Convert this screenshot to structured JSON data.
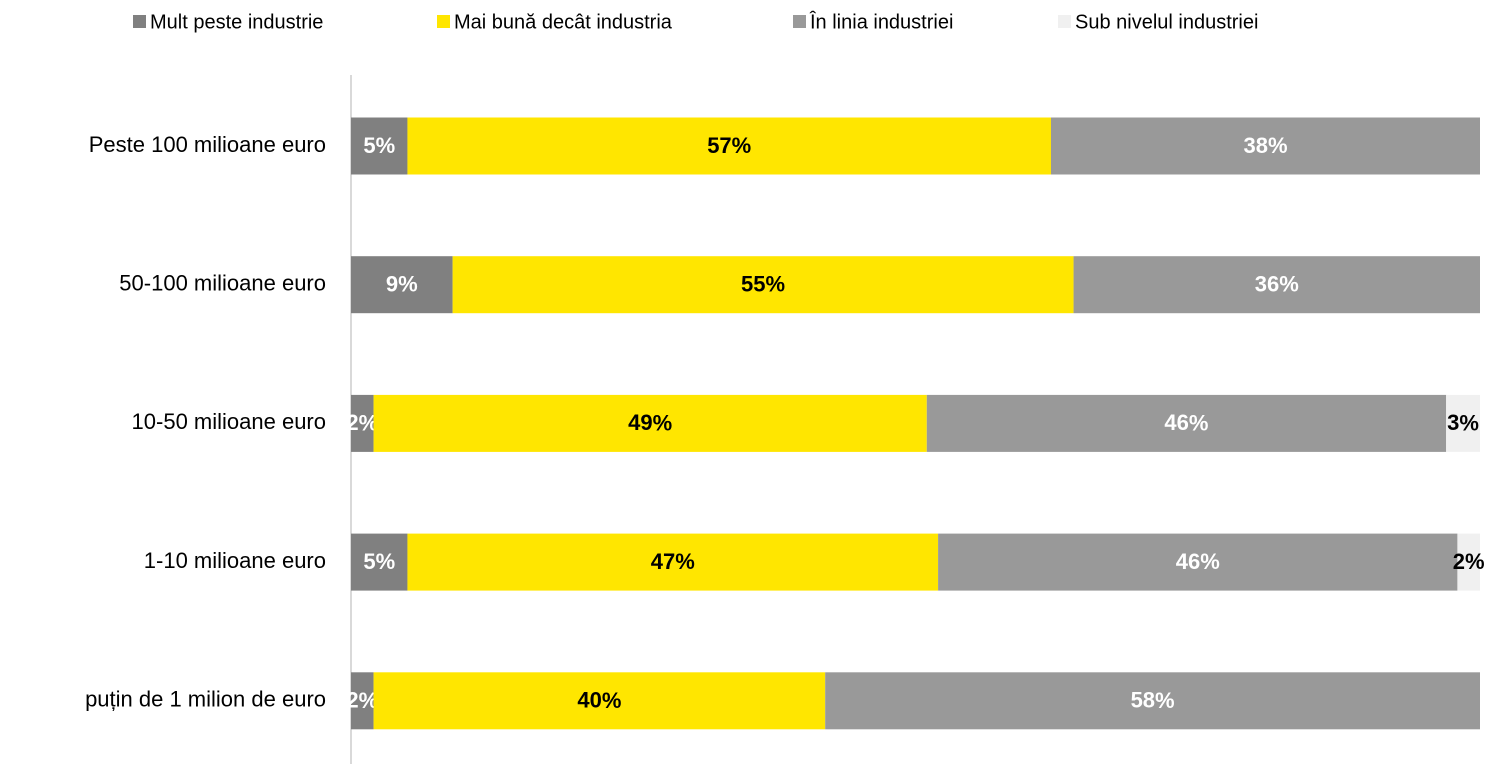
{
  "chart_data": {
    "type": "bar",
    "orientation": "horizontal",
    "stacked": true,
    "categories": [
      "Peste 100 milioane euro",
      "50-100 milioane euro",
      "10-50 milioane euro",
      "1-10 milioane euro",
      "puțin de 1 milion de euro"
    ],
    "series": [
      {
        "name": "Mult peste industrie",
        "color": "#808080",
        "values": [
          5,
          9,
          2,
          5,
          2
        ]
      },
      {
        "name": "Mai bună decât industria",
        "color": "#ffe600",
        "values": [
          57,
          55,
          49,
          47,
          40
        ]
      },
      {
        "name": "În linia industriei",
        "color": "#999999",
        "values": [
          38,
          36,
          46,
          46,
          58
        ]
      },
      {
        "name": "Sub nivelul industriei",
        "color": "#f0f0f0",
        "values": [
          null,
          null,
          3,
          2,
          null
        ]
      }
    ],
    "xlim": [
      0,
      100
    ],
    "legend": "top"
  }
}
